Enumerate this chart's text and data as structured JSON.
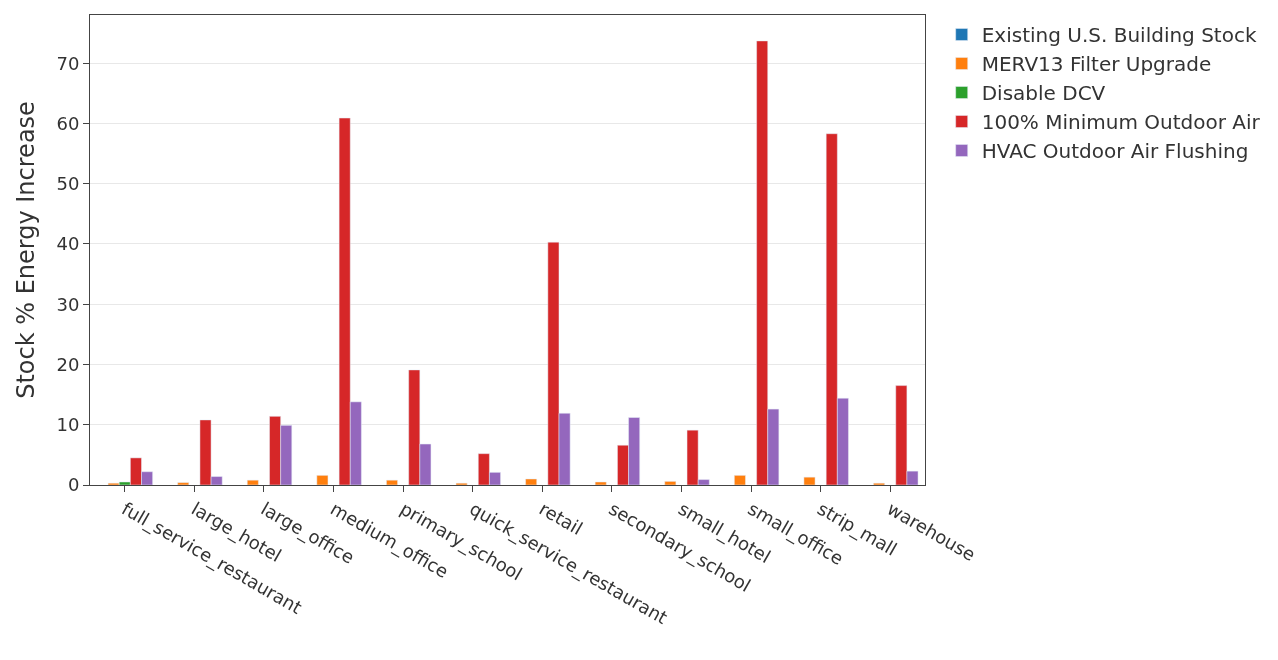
{
  "chart_data": {
    "type": "bar",
    "ylabel": "Stock % Energy Increase",
    "categories": [
      "full_service_restaurant",
      "large_hotel",
      "large_office",
      "medium_office",
      "primary_school",
      "quick_service_restaurant",
      "retail",
      "secondary_school",
      "small_hotel",
      "small_office",
      "strip_mall",
      "warehouse"
    ],
    "series": [
      {
        "name": "Existing U.S. Building Stock",
        "color": "#1f77b4",
        "values": [
          null,
          null,
          null,
          null,
          null,
          null,
          null,
          null,
          null,
          null,
          null,
          null
        ]
      },
      {
        "name": "MERV13 Filter Upgrade",
        "color": "#ff7f0e",
        "values": [
          0.3,
          0.4,
          0.8,
          1.6,
          0.8,
          0.3,
          1.0,
          0.5,
          0.6,
          1.6,
          1.3,
          0.3
        ]
      },
      {
        "name": "Disable DCV",
        "color": "#2ca02c",
        "values": [
          0.5,
          null,
          null,
          null,
          null,
          null,
          null,
          null,
          null,
          null,
          null,
          null
        ]
      },
      {
        "name": "100% Minimum Outdoor Air",
        "color": "#d62728",
        "values": [
          4.5,
          10.8,
          11.4,
          60.9,
          19.1,
          5.2,
          40.3,
          6.6,
          9.1,
          73.7,
          58.3,
          16.5
        ]
      },
      {
        "name": "HVAC Outdoor Air Flushing",
        "color": "#9467bd",
        "values": [
          2.2,
          1.4,
          9.9,
          13.8,
          6.8,
          2.1,
          11.9,
          11.2,
          0.9,
          12.6,
          14.4,
          2.3
        ]
      }
    ],
    "ylim": [
      0,
      78
    ],
    "yticks": [
      0,
      10,
      20,
      30,
      40,
      50,
      60,
      70
    ],
    "grid": "y",
    "legend": "top right"
  }
}
